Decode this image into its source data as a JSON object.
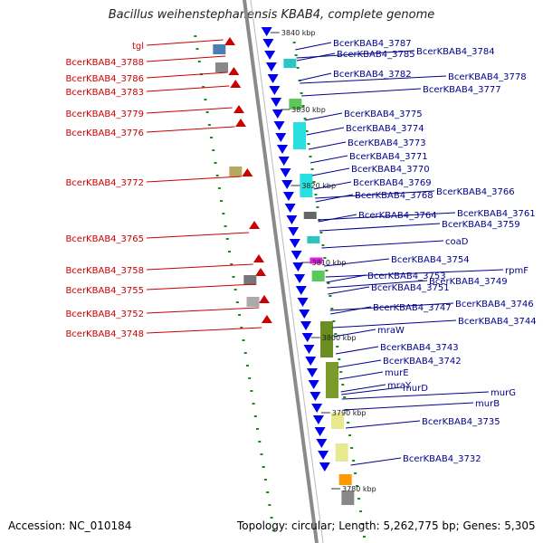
{
  "title": "Bacillus weihenstephanensis KBAB4, complete genome",
  "footer": {
    "accession": "Accession: NC_010184",
    "stats": "Topology: circular; Length: 5,262,775 bp; Genes: 5,305"
  },
  "colors": {
    "left_labels": "#cc0000",
    "right_labels": "#00008b",
    "backbone": "#8a8a8a",
    "tick": "#1a8a1a"
  },
  "scale_ticks": [
    "3840 kbp",
    "3830 kbp",
    "3820 kbp",
    "3810 kbp",
    "3800 kbp",
    "3790 kbp",
    "3780 kbp"
  ],
  "left_labels": [
    "tgl",
    "BcerKBAB4_3788",
    "BcerKBAB4_3786",
    "BcerKBAB4_3783",
    "BcerKBAB4_3779",
    "BcerKBAB4_3776",
    "BcerKBAB4_3772",
    "BcerKBAB4_3765",
    "BcerKBAB4_3758",
    "BcerKBAB4_3755",
    "BcerKBAB4_3752",
    "BcerKBAB4_3748"
  ],
  "right_labels": [
    "BcerKBAB4_3787",
    "BcerKBAB4_3785",
    "BcerKBAB4_3784",
    "BcerKBAB4_3782",
    "BcerKBAB4_3778",
    "BcerKBAB4_3777",
    "BcerKBAB4_3775",
    "BcerKBAB4_3774",
    "BcerKBAB4_3773",
    "BcerKBAB4_3771",
    "BcerKBAB4_3770",
    "BcerKBAB4_3769",
    "BcerKBAB4_3768",
    "BcerKBAB4_3766",
    "BcerKBAB4_3764",
    "BcerKBAB4_3761",
    "BcerKBAB4_3759",
    "coaD",
    "BcerKBAB4_3754",
    "BcerKBAB4_3753",
    "rpmF",
    "BcerKBAB4_3749",
    "BcerKBAB4_3751",
    "BcerKBAB4_3747",
    "BcerKBAB4_3746",
    "mraW",
    "BcerKBAB4_3744",
    "BcerKBAB4_3743",
    "BcerKBAB4_3742",
    "murE",
    "mraY",
    "murD",
    "murG",
    "murB",
    "BcerKBAB4_3735",
    "BcerKBAB4_3732"
  ]
}
